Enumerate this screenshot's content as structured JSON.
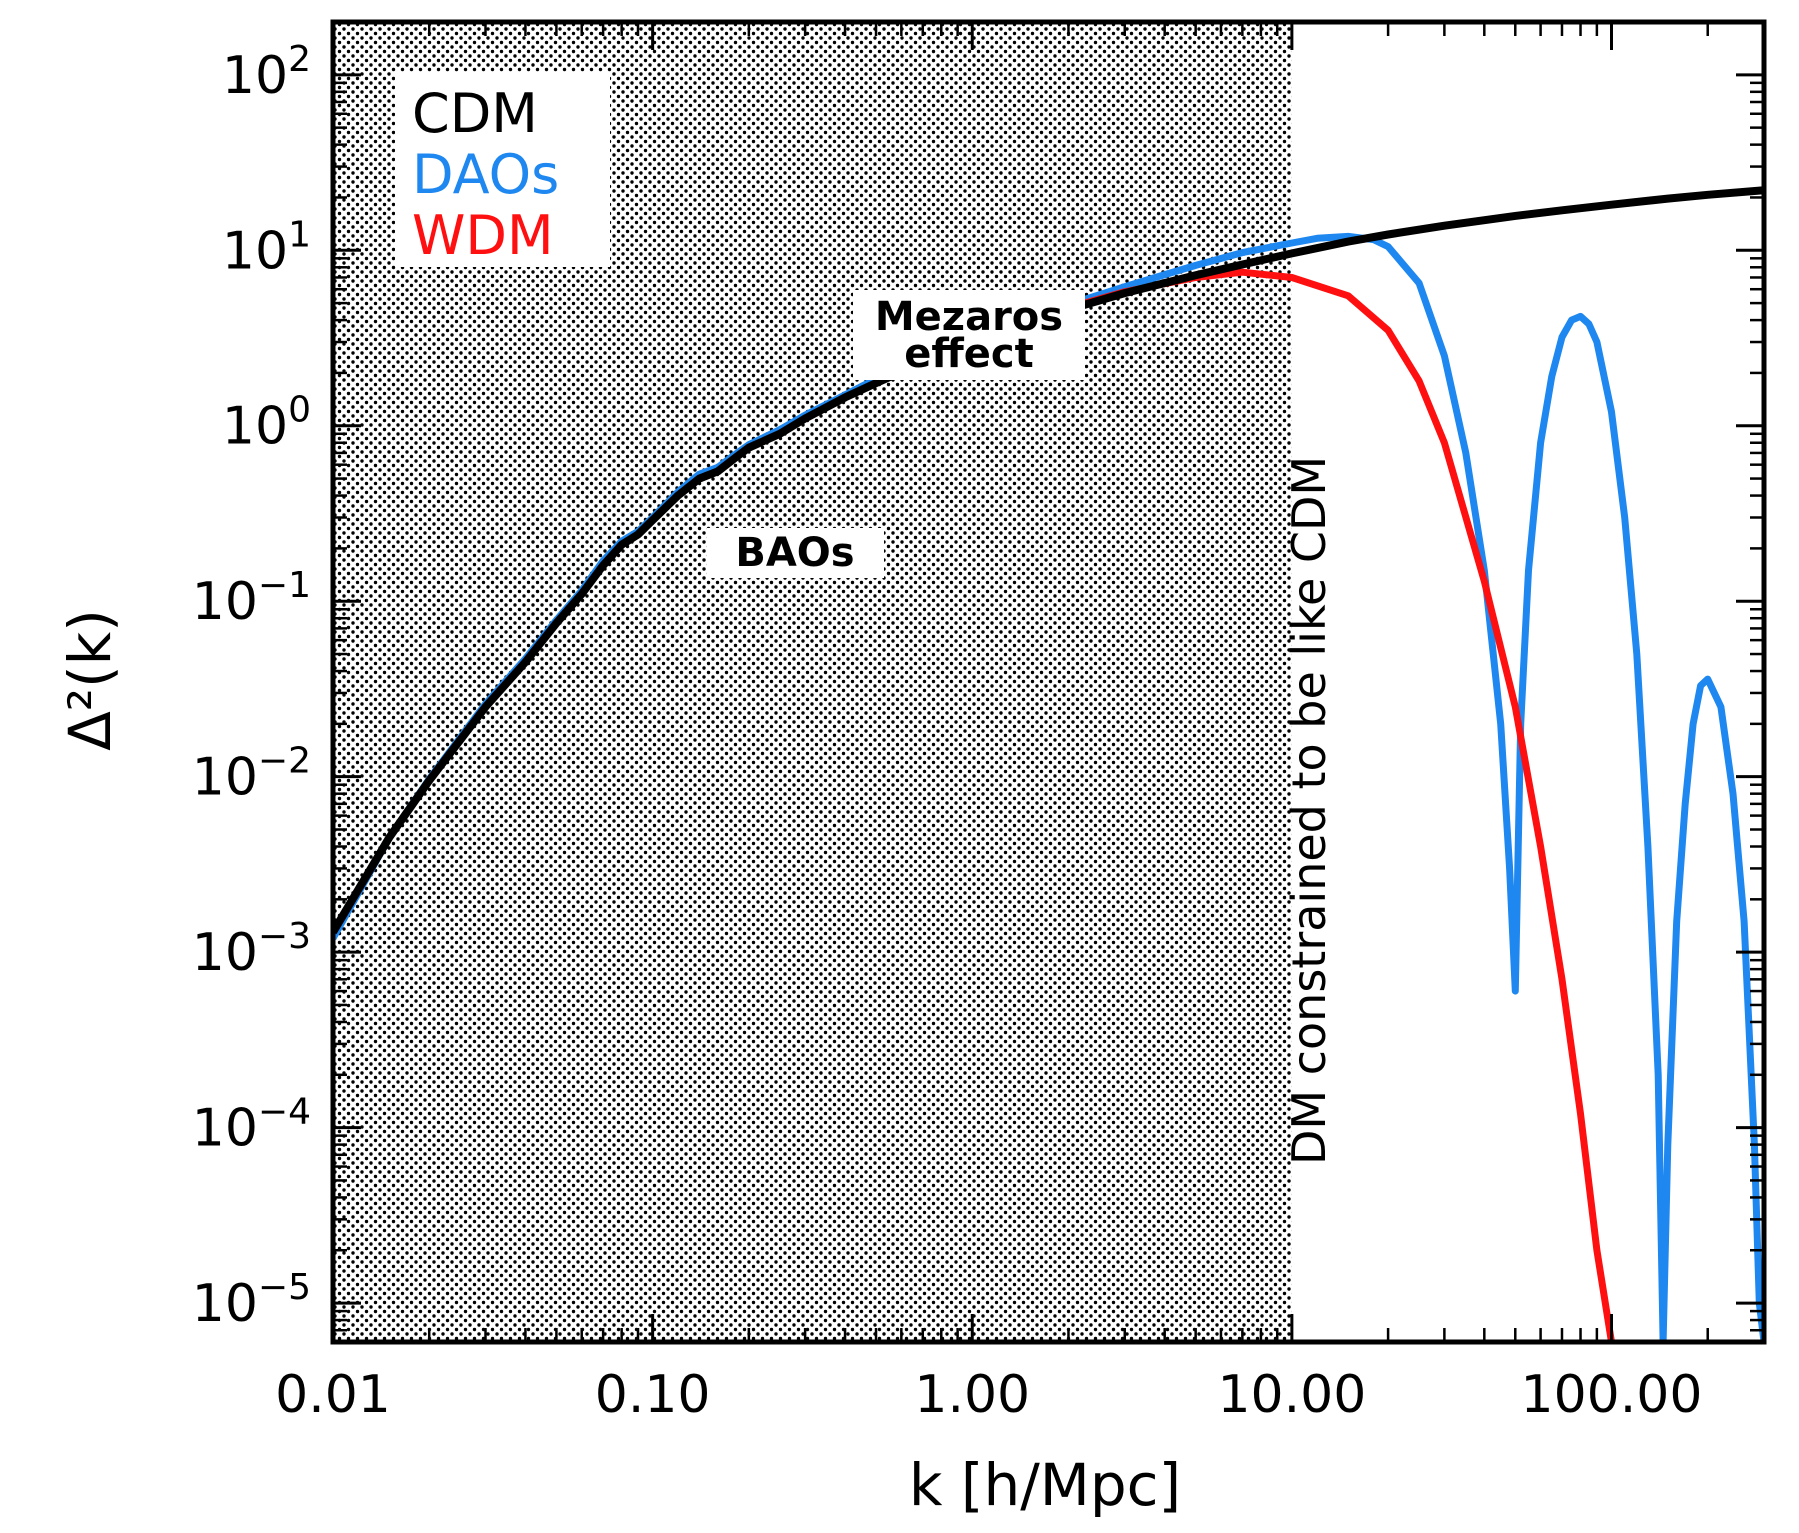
{
  "chart_data": {
    "type": "line",
    "xscale": "log",
    "yscale": "log",
    "xlim": [
      0.01,
      300
    ],
    "ylim": [
      6e-06,
      200
    ],
    "xlabel": "k [h/Mpc]",
    "ylabel": "Δ²(k)",
    "x_ticks": [
      {
        "value": 0.01,
        "label": "0.01"
      },
      {
        "value": 0.1,
        "label": "0.10"
      },
      {
        "value": 1,
        "label": "1.00"
      },
      {
        "value": 10,
        "label": "10.00"
      },
      {
        "value": 100,
        "label": "100.00"
      }
    ],
    "y_ticks": [
      {
        "value": 100,
        "exp": "2"
      },
      {
        "value": 10,
        "exp": "1"
      },
      {
        "value": 1,
        "exp": "0"
      },
      {
        "value": 0.1,
        "exp": "−1"
      },
      {
        "value": 0.01,
        "exp": "−2"
      },
      {
        "value": 0.001,
        "exp": "−3"
      },
      {
        "value": 0.0001,
        "exp": "−4"
      },
      {
        "value": 1e-05,
        "exp": "−5"
      }
    ],
    "y_tick_base": "10",
    "legend": [
      {
        "label": "CDM",
        "color": "#000000"
      },
      {
        "label": "DAOs",
        "color": "#1e88f0"
      },
      {
        "label": "WDM",
        "color": "#ff1010"
      }
    ],
    "annotations": {
      "mezaros_line1": "Mezaros",
      "mezaros_line2": "effect",
      "baos": "BAOs",
      "constraint": "DM constrained to be like CDM"
    },
    "shaded_region": {
      "xmin": 0.01,
      "xmax": 10,
      "pattern": "dots"
    },
    "series": [
      {
        "name": "CDM",
        "color": "#000000",
        "x": [
          0.01,
          0.015,
          0.02,
          0.03,
          0.04,
          0.05,
          0.06,
          0.07,
          0.08,
          0.09,
          0.1,
          0.12,
          0.14,
          0.16,
          0.18,
          0.2,
          0.25,
          0.3,
          0.4,
          0.5,
          0.7,
          1,
          1.5,
          2,
          3,
          5,
          7,
          10,
          15,
          20,
          30,
          50,
          70,
          100,
          150,
          200,
          300
        ],
        "y": [
          0.0013,
          0.0045,
          0.0095,
          0.025,
          0.045,
          0.075,
          0.11,
          0.16,
          0.21,
          0.24,
          0.29,
          0.4,
          0.5,
          0.55,
          0.65,
          0.75,
          0.9,
          1.1,
          1.45,
          1.75,
          2.3,
          2.9,
          3.8,
          4.6,
          5.7,
          7.2,
          8.3,
          9.6,
          11.2,
          12.3,
          13.8,
          15.7,
          16.9,
          18.2,
          19.7,
          20.7,
          22.0
        ]
      },
      {
        "name": "DAOs",
        "color": "#1e88f0",
        "x": [
          0.01,
          0.015,
          0.02,
          0.03,
          0.04,
          0.05,
          0.06,
          0.07,
          0.08,
          0.09,
          0.1,
          0.12,
          0.14,
          0.16,
          0.18,
          0.2,
          0.25,
          0.3,
          0.4,
          0.5,
          0.7,
          1,
          1.5,
          2,
          3,
          5,
          7,
          10,
          12,
          15,
          18,
          20,
          25,
          30,
          35,
          40,
          45,
          48,
          50,
          50,
          52,
          55,
          60,
          65,
          70,
          75,
          80,
          85,
          90,
          100,
          110,
          120,
          130,
          140,
          145,
          145,
          150,
          160,
          170,
          180,
          190,
          200,
          220,
          240,
          260,
          280,
          290,
          300
        ],
        "y": [
          0.0012,
          0.0045,
          0.0097,
          0.026,
          0.047,
          0.078,
          0.115,
          0.17,
          0.22,
          0.25,
          0.3,
          0.42,
          0.53,
          0.58,
          0.68,
          0.78,
          0.95,
          1.15,
          1.5,
          1.85,
          2.4,
          3.0,
          4.0,
          4.9,
          6.2,
          8.2,
          9.7,
          11.0,
          11.7,
          12.0,
          11.5,
          10.5,
          6.5,
          2.5,
          0.7,
          0.15,
          0.02,
          0.003,
          0.0006,
          0.0006,
          0.02,
          0.15,
          0.8,
          1.9,
          3.2,
          4.0,
          4.2,
          3.8,
          3.0,
          1.2,
          0.3,
          0.05,
          0.004,
          0.0002,
          6e-06,
          6e-06,
          8e-05,
          0.0015,
          0.007,
          0.02,
          0.033,
          0.036,
          0.025,
          0.008,
          0.0015,
          8e-05,
          1e-05,
          6e-06
        ]
      },
      {
        "name": "WDM",
        "color": "#ff1010",
        "x": [
          2,
          3,
          5,
          7,
          10,
          15,
          20,
          25,
          30,
          40,
          50,
          60,
          70,
          80,
          90,
          100
        ],
        "y": [
          4.7,
          5.8,
          7.0,
          7.5,
          7.0,
          5.5,
          3.5,
          1.8,
          0.8,
          0.13,
          0.025,
          0.004,
          0.0007,
          0.00012,
          2e-05,
          6e-06
        ]
      }
    ]
  }
}
